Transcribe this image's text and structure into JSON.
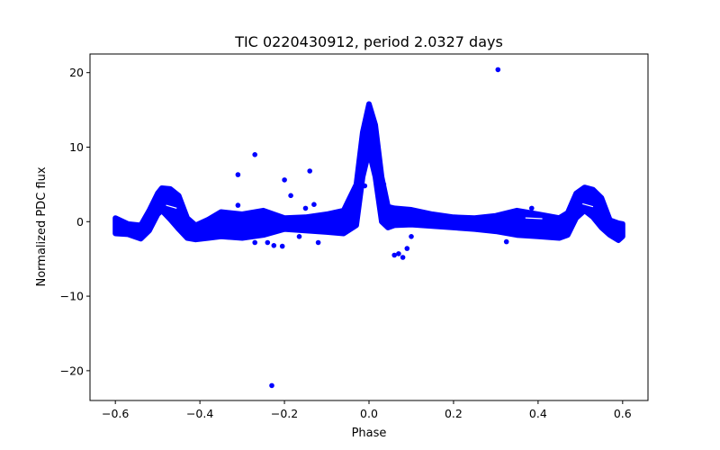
{
  "chart_data": {
    "type": "scatter",
    "title": "TIC 0220430912, period 2.0327 days",
    "xlabel": "Phase",
    "ylabel": "Normalized PDC flux",
    "xlim": [
      -0.66,
      0.66
    ],
    "ylim": [
      -24,
      22.5
    ],
    "xticks": [
      -0.6,
      -0.4,
      -0.2,
      0.0,
      0.2,
      0.4,
      0.6
    ],
    "xtick_labels": [
      "−0.6",
      "−0.4",
      "−0.2",
      "0.0",
      "0.2",
      "0.4",
      "0.6"
    ],
    "yticks": [
      20,
      10,
      0,
      -10,
      -20
    ],
    "ytick_labels": [
      "20",
      "10",
      "0",
      "−10",
      "−20"
    ],
    "grid": false,
    "legend": null,
    "marker_color": "#0000ff",
    "series": [
      {
        "name": "phase-folded light curve (dense band upper envelope)",
        "x": [
          -0.6,
          -0.57,
          -0.54,
          -0.52,
          -0.5,
          -0.49,
          -0.47,
          -0.45,
          -0.43,
          -0.41,
          -0.38,
          -0.35,
          -0.3,
          -0.25,
          -0.2,
          -0.15,
          -0.1,
          -0.06,
          -0.03,
          -0.015,
          0.0,
          0.015,
          0.03,
          0.045,
          0.06,
          0.1,
          0.15,
          0.2,
          0.25,
          0.3,
          0.35,
          0.4,
          0.45,
          0.47,
          0.49,
          0.51,
          0.53,
          0.55,
          0.57,
          0.59,
          0.6
        ],
        "y": [
          0.5,
          -0.3,
          -0.5,
          1.5,
          3.8,
          4.5,
          4.4,
          3.5,
          0.5,
          -0.5,
          0.3,
          1.3,
          1.0,
          1.5,
          0.5,
          0.6,
          1.0,
          1.5,
          5.0,
          12.0,
          15.8,
          13.0,
          6.0,
          2.0,
          1.8,
          1.6,
          1.0,
          0.6,
          0.5,
          0.8,
          1.5,
          1.0,
          0.5,
          1.2,
          3.8,
          4.6,
          4.3,
          3.2,
          0.2,
          -0.2,
          -0.3
        ]
      },
      {
        "name": "phase-folded light curve (dense band lower envelope)",
        "x": [
          -0.6,
          -0.57,
          -0.54,
          -0.52,
          -0.5,
          -0.49,
          -0.47,
          -0.45,
          -0.43,
          -0.41,
          -0.38,
          -0.35,
          -0.3,
          -0.25,
          -0.2,
          -0.15,
          -0.1,
          -0.06,
          -0.03,
          -0.015,
          0.0,
          0.015,
          0.03,
          0.045,
          0.06,
          0.1,
          0.15,
          0.2,
          0.25,
          0.3,
          0.35,
          0.4,
          0.45,
          0.47,
          0.49,
          0.51,
          0.53,
          0.55,
          0.57,
          0.59,
          0.6
        ],
        "y": [
          -1.6,
          -1.7,
          -2.3,
          -1.2,
          1.0,
          1.5,
          0.3,
          -1.0,
          -2.2,
          -2.4,
          -2.2,
          -2.0,
          -2.2,
          -1.8,
          -1.0,
          -1.2,
          -1.4,
          -1.6,
          -0.5,
          6.0,
          9.5,
          6.0,
          0.0,
          -0.8,
          -0.5,
          -0.4,
          -0.6,
          -0.8,
          -1.0,
          -1.3,
          -1.8,
          -2.0,
          -2.2,
          -1.8,
          0.5,
          1.5,
          0.6,
          -0.8,
          -1.8,
          -2.5,
          -2.0
        ]
      },
      {
        "name": "outliers",
        "x": [
          -0.23,
          -0.31,
          -0.27,
          -0.2,
          -0.14,
          -0.31,
          -0.24,
          -0.185,
          -0.15,
          -0.13,
          -0.27,
          -0.225,
          -0.205,
          -0.165,
          -0.12,
          0.06,
          0.07,
          0.08,
          0.09,
          0.1,
          0.305,
          0.325,
          0.385,
          -0.01,
          0.035
        ],
        "y": [
          -22.0,
          6.3,
          9.0,
          5.6,
          6.8,
          2.2,
          -2.8,
          3.5,
          1.8,
          2.3,
          -2.8,
          -3.2,
          -3.3,
          -2.0,
          -2.8,
          -4.5,
          -4.3,
          -4.8,
          -3.6,
          -2.0,
          20.4,
          -2.7,
          1.8,
          4.8,
          5.0
        ]
      }
    ]
  }
}
